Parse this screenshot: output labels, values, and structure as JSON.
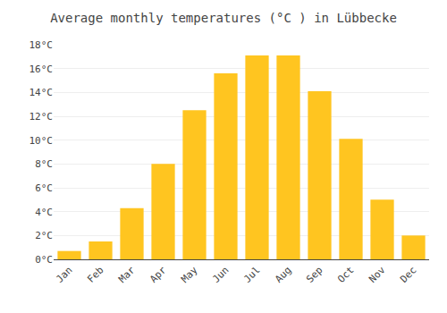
{
  "chart_data": {
    "type": "bar",
    "title": "Average monthly temperatures (°C ) in Lübbecke",
    "categories": [
      "Jan",
      "Feb",
      "Mar",
      "Apr",
      "May",
      "Jun",
      "Jul",
      "Aug",
      "Sep",
      "Oct",
      "Nov",
      "Dec"
    ],
    "values": [
      0.7,
      1.5,
      4.3,
      8.0,
      12.5,
      15.6,
      17.1,
      17.1,
      14.1,
      10.1,
      5.0,
      2.0
    ],
    "color": "#FFC520",
    "ylim": [
      0,
      18
    ],
    "yticks": [
      {
        "value": 0,
        "label": "0°C"
      },
      {
        "value": 2,
        "label": "2°C"
      },
      {
        "value": 4,
        "label": "4°C"
      },
      {
        "value": 6,
        "label": "6°C"
      },
      {
        "value": 8,
        "label": "8°C"
      },
      {
        "value": 10,
        "label": "10°C"
      },
      {
        "value": 12,
        "label": "12°C"
      },
      {
        "value": 14,
        "label": "14°C"
      },
      {
        "value": 16,
        "label": "16°C"
      },
      {
        "value": 18,
        "label": "18°C"
      }
    ],
    "grid": true
  }
}
